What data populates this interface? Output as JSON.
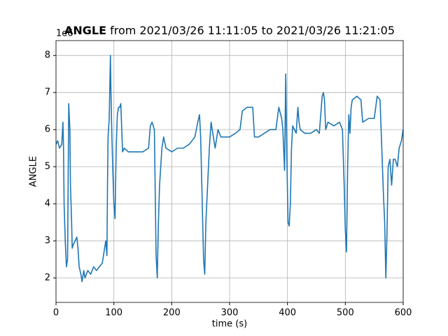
{
  "chart_data": {
    "type": "line",
    "title_bold": "ANGLE",
    "title_rest": "from 2021/03/26 11:11:05 to 2021/03/26 11:21:05",
    "xlabel": "time (s)",
    "ylabel": "ANGLE",
    "offset_text": "1e6",
    "color": "#1f77b4",
    "grid": true,
    "xlim": [
      0,
      600
    ],
    "xticks": [
      0,
      100,
      200,
      300,
      400,
      500,
      600
    ],
    "ylim": [
      1.34,
      8.4
    ],
    "yticks": [
      2,
      3,
      4,
      5,
      6,
      7,
      8
    ],
    "x": [
      0,
      3,
      6,
      10,
      12,
      13,
      14,
      16,
      18,
      20,
      22,
      24,
      25,
      27,
      28,
      30,
      33,
      36,
      38,
      40,
      43,
      45,
      48,
      50,
      55,
      60,
      65,
      70,
      75,
      80,
      84,
      86,
      88,
      89,
      90,
      92,
      94,
      95,
      96,
      98,
      100,
      102,
      104,
      106,
      108,
      110,
      112,
      115,
      118,
      125,
      130,
      140,
      150,
      160,
      163,
      166,
      170,
      173,
      175,
      177,
      179,
      181,
      183,
      186,
      190,
      200,
      210,
      220,
      230,
      240,
      245,
      248,
      250,
      252,
      255,
      257,
      259,
      262,
      265,
      268,
      270,
      275,
      280,
      285,
      290,
      300,
      310,
      318,
      322,
      330,
      340,
      343,
      350,
      360,
      370,
      380,
      385,
      390,
      392,
      395,
      397,
      399,
      401,
      403,
      405,
      407,
      409,
      412,
      415,
      418,
      420,
      422,
      430,
      440,
      450,
      455,
      460,
      462,
      464,
      466,
      470,
      480,
      490,
      495,
      498,
      500,
      502,
      504,
      506,
      508,
      510,
      512,
      520,
      527,
      530,
      540,
      550,
      555,
      560,
      563,
      566,
      568,
      570,
      572,
      574,
      577,
      580,
      583,
      586,
      590,
      593,
      597,
      600
    ],
    "values": [
      5.6,
      5.7,
      5.5,
      5.6,
      6.2,
      5.5,
      4.0,
      3.0,
      2.3,
      2.5,
      6.7,
      6.0,
      4.5,
      3.5,
      2.8,
      2.9,
      3.0,
      3.1,
      2.8,
      2.3,
      2.1,
      1.9,
      2.2,
      2.0,
      2.2,
      2.1,
      2.3,
      2.2,
      2.3,
      2.4,
      2.8,
      3.0,
      2.6,
      4.5,
      5.8,
      6.3,
      8.0,
      7.0,
      6.2,
      5.0,
      4.0,
      3.6,
      5.5,
      6.4,
      6.6,
      6.6,
      6.7,
      5.4,
      5.5,
      5.4,
      5.4,
      5.4,
      5.4,
      5.5,
      6.1,
      6.2,
      6.0,
      2.6,
      2.0,
      3.5,
      4.5,
      5.0,
      5.5,
      5.8,
      5.5,
      5.4,
      5.5,
      5.5,
      5.6,
      5.8,
      6.2,
      6.4,
      5.8,
      4.5,
      2.5,
      2.1,
      3.5,
      4.5,
      5.5,
      6.2,
      6.0,
      5.5,
      6.0,
      5.8,
      5.8,
      5.8,
      5.9,
      6.0,
      6.5,
      6.6,
      6.6,
      5.8,
      5.8,
      5.9,
      6.0,
      6.0,
      6.6,
      6.3,
      6.0,
      4.9,
      7.5,
      5.2,
      3.5,
      3.4,
      4.0,
      5.5,
      6.1,
      6.0,
      5.9,
      6.6,
      6.2,
      6.0,
      5.9,
      5.9,
      6.0,
      5.9,
      6.9,
      7.0,
      6.8,
      6.0,
      6.2,
      6.1,
      6.2,
      6.0,
      4.5,
      3.3,
      2.7,
      5.0,
      6.4,
      5.9,
      6.6,
      6.8,
      6.9,
      6.8,
      6.2,
      6.3,
      6.3,
      6.9,
      6.8,
      5.5,
      4.2,
      3.5,
      2.0,
      3.2,
      5.0,
      5.2,
      4.5,
      5.2,
      5.2,
      5.0,
      5.5,
      5.7,
      6.0
    ]
  }
}
